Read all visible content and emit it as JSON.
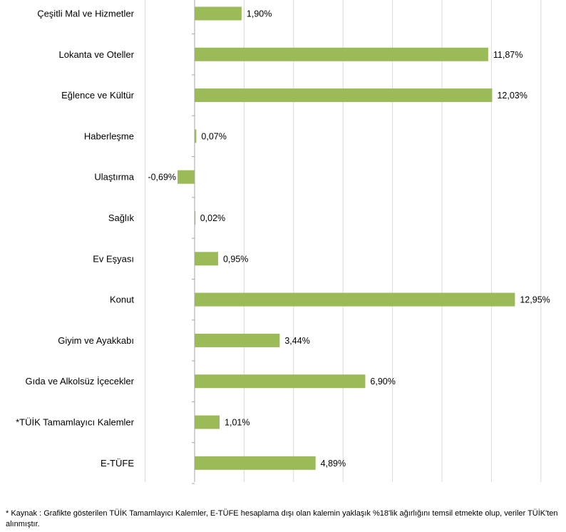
{
  "chart_data": {
    "type": "bar",
    "orientation": "horizontal",
    "categories": [
      "Çeşitli Mal ve Hizmetler",
      "Lokanta ve Oteller",
      "Eğlence ve Kültür",
      "Haberleşme",
      "Ulaştırma",
      "Sağlık",
      "Ev Eşyası",
      "Konut",
      "Giyim ve Ayakkabı",
      "Gıda ve Alkolsüz İçecekler",
      "*TÜİK Tamamlayıcı Kalemler",
      "E-TÜFE"
    ],
    "values": [
      1.9,
      11.87,
      12.03,
      0.07,
      -0.69,
      0.02,
      0.95,
      12.95,
      3.44,
      6.9,
      1.01,
      4.89
    ],
    "value_labels": [
      "1,90%",
      "11,87%",
      "12,03%",
      "0,07%",
      "-0,69%",
      "0,02%",
      "0,95%",
      "12,95%",
      "3,44%",
      "6,90%",
      "1,01%",
      "4,89%"
    ],
    "xlim": [
      -2,
      14
    ],
    "grid": true,
    "bar_color": "#9BBB59",
    "grid_color": "#D9D9D9",
    "axis_color": "#A6A6A6"
  },
  "footnote": "*  Kaynak : Grafikte gösterilen TÜİK Tamamlayıcı Kalemler, E-TÜFE hesaplama dışı olan kalemin yaklaşık %18'lik ağırlığını temsil etmekte olup, veriler TÜİK'ten alınmıştır."
}
